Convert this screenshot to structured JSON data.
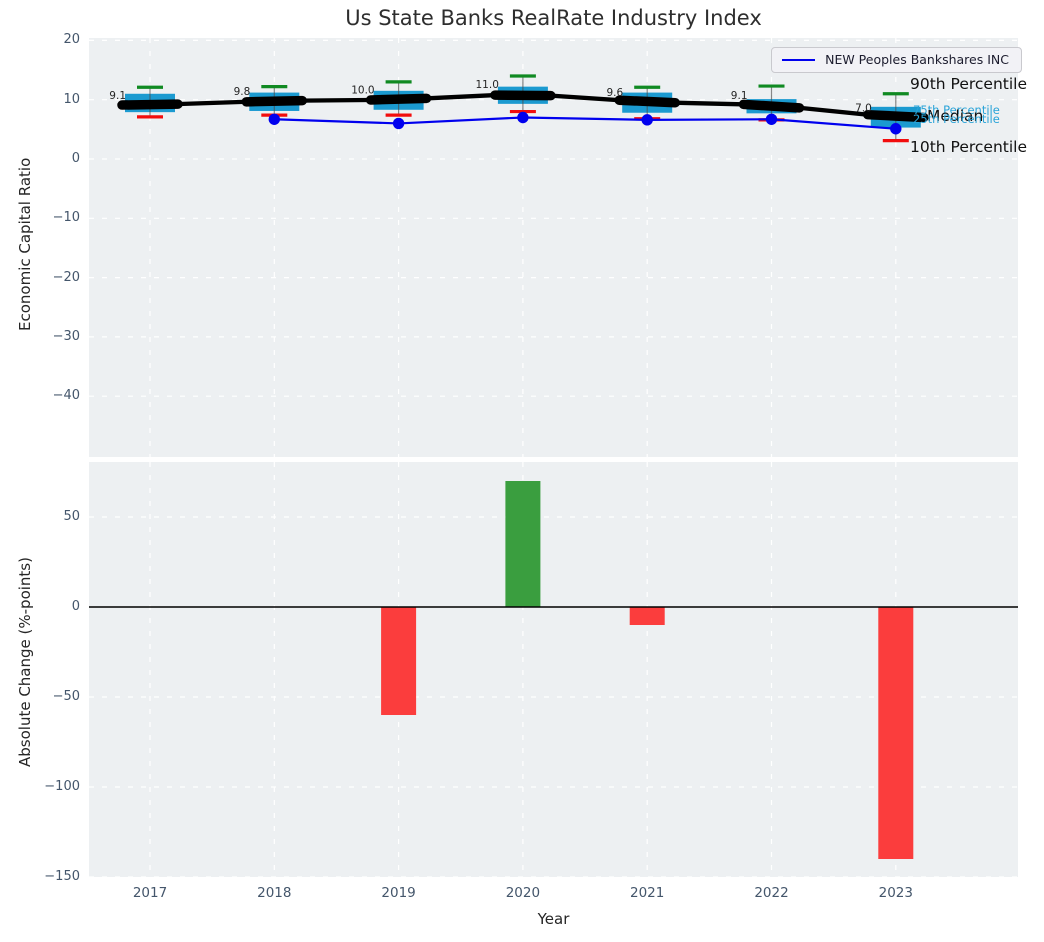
{
  "figure": {
    "title": "Us State Banks RealRate Industry Index",
    "legend_label": "NEW Peoples Bankshares INC"
  },
  "annotations": {
    "p90": "90th Percentile",
    "p75": "75th Percentile",
    "median": "Median",
    "p25": "25th Percentile",
    "p10": "10th Percentile"
  },
  "colors": {
    "plot_background": "#edf0f2",
    "grid": "#ffffff",
    "box_fill": "#1b9ad0",
    "cap_high_green": "#108a22",
    "cap_low_red": "#f20d0d",
    "median_line": "#000000",
    "company_line": "#0000ee",
    "bar_positive": "#3a9e3f",
    "bar_negative": "#fb3d3d",
    "tick_label": "#44566b",
    "annotation_cyan": "#29a3d8"
  },
  "chart_data": [
    {
      "type": "candlestick-line",
      "title": "Us State Banks RealRate Industry Index",
      "ylabel": "Economic Capital Ratio",
      "ylim": [
        -50.5,
        20.5
      ],
      "yticks": [
        20,
        10,
        0,
        -10,
        -20,
        -30,
        -40
      ],
      "grid": true,
      "legend_position": "upper right",
      "categories": [
        2017,
        2018,
        2019,
        2020,
        2021,
        2022,
        2023
      ],
      "series": [
        {
          "name": "90th Percentile",
          "values": [
            12.1,
            12.2,
            13.0,
            14.0,
            12.1,
            12.3,
            11.0
          ]
        },
        {
          "name": "75th Percentile",
          "values": [
            11.0,
            11.2,
            11.5,
            12.2,
            11.2,
            10.1,
            8.8
          ]
        },
        {
          "name": "Median",
          "values": [
            9.1,
            9.8,
            10.0,
            11.0,
            9.6,
            9.1,
            7.0
          ]
        },
        {
          "name": "25th Percentile",
          "values": [
            7.9,
            8.1,
            8.3,
            9.3,
            7.8,
            7.7,
            5.3
          ]
        },
        {
          "name": "10th Percentile",
          "values": [
            7.1,
            7.4,
            7.4,
            8.0,
            6.8,
            6.6,
            3.1
          ]
        },
        {
          "name": "NEW Peoples Bankshares INC",
          "values": [
            null,
            6.7,
            6.0,
            7.0,
            6.6,
            6.7,
            5.1
          ]
        }
      ],
      "median_labels": [
        "9.1",
        "9.8",
        "10.0",
        "11.0",
        "9.6",
        "9.1",
        "7.0"
      ]
    },
    {
      "type": "bar",
      "xlabel": "Year",
      "ylabel": "Absolute Change (%-points)",
      "ylim": [
        -151,
        81
      ],
      "yticks": [
        50,
        0,
        -50,
        -100,
        -150
      ],
      "grid": true,
      "zero_line": true,
      "categories": [
        2017,
        2018,
        2019,
        2020,
        2021,
        2022,
        2023
      ],
      "values": [
        null,
        null,
        -60,
        70,
        -10,
        null,
        -140
      ]
    }
  ]
}
